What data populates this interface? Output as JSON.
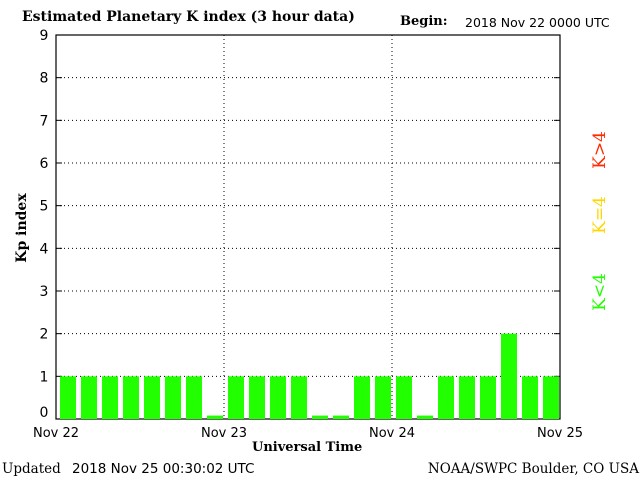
{
  "header": {
    "title": "Estimated Planetary K index (3 hour data)",
    "begin_label": "Begin:",
    "begin_value": "2018 Nov 22 0000 UTC"
  },
  "footer": {
    "updated_label": "Updated",
    "updated_value": "2018 Nov 25 00:30:02 UTC",
    "credit": "NOAA/SWPC Boulder, CO USA"
  },
  "legend": [
    {
      "label": "K>4",
      "color": "#ff2a00"
    },
    {
      "label": "K=4",
      "color": "#ffd700"
    },
    {
      "label": "K<4",
      "color": "#22ff00"
    }
  ],
  "chart_data": {
    "type": "bar",
    "title": "Estimated Planetary K index (3 hour data)",
    "xlabel": "Universal Time",
    "ylabel": "Kp index",
    "ylim": [
      0,
      9
    ],
    "yticks": [
      "0",
      "1",
      "2",
      "3",
      "4",
      "5",
      "6",
      "7",
      "8",
      "9"
    ],
    "xticks": [
      "Nov 22",
      "Nov 23",
      "Nov 24",
      "Nov 25"
    ],
    "grid": true,
    "bar_color": "#22ff00",
    "values": [
      1,
      1,
      1,
      1,
      1,
      1,
      1,
      0.08,
      1,
      1,
      1,
      1,
      0.08,
      0.08,
      1,
      1,
      1,
      0.08,
      1,
      1,
      1,
      2,
      1,
      1
    ]
  }
}
